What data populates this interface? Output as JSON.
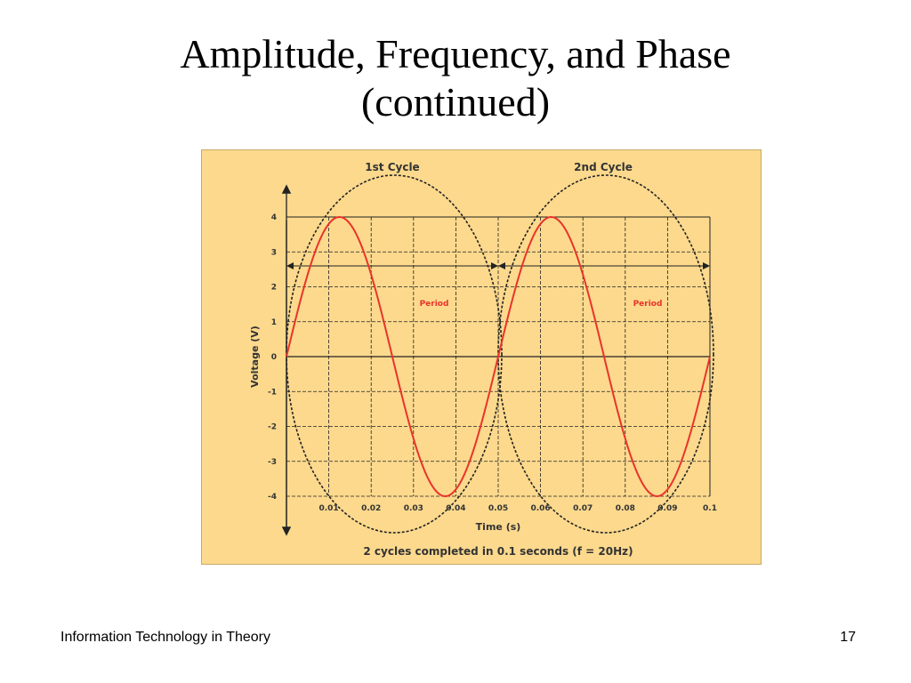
{
  "slide": {
    "title_line1": "Amplitude, Frequency, and Phase",
    "title_line2": "(continued)",
    "footer_left": "Information Technology in Theory",
    "page_number": "17"
  },
  "colors": {
    "figure_background": "#fcd98d",
    "figure_border": "#c9a96a",
    "wave": "#e8342a",
    "period_text": "#e8342a",
    "grid": "#222222"
  },
  "chart_data": {
    "type": "line",
    "xlabel": "Time (s)",
    "ylabel": "Voltage (V)",
    "xlim": [
      0,
      0.1
    ],
    "ylim": [
      -4,
      4
    ],
    "grid": true,
    "x_tick_labels": [
      "0.01",
      "0.02",
      "0.03",
      "0.04",
      "0.05",
      "0.06",
      "0.07",
      "0.08",
      "0.09",
      "0.1"
    ],
    "y_tick_labels": [
      "4",
      "3",
      "2",
      "1",
      "0",
      "-1",
      "-2",
      "-3",
      "-4"
    ],
    "series": [
      {
        "amplitude": 4,
        "frequency_hz": 20,
        "x": [
          0,
          0.00625,
          0.0125,
          0.01875,
          0.025,
          0.03125,
          0.0375,
          0.04375,
          0.05,
          0.05625,
          0.0625,
          0.06875,
          0.075,
          0.08125,
          0.0875,
          0.09375,
          0.1
        ],
        "y": [
          0,
          2.83,
          4,
          2.83,
          0,
          -2.83,
          -4,
          -2.83,
          0,
          2.83,
          4,
          2.83,
          0,
          -2.83,
          -4,
          -2.83,
          0
        ]
      }
    ],
    "annotations": {
      "cycle1_label": "1st Cycle",
      "cycle2_label": "2nd Cycle",
      "period1": "Period",
      "period2": "Period",
      "caption": "2 cycles completed in 0.1 seconds (f = 20Hz)"
    }
  }
}
